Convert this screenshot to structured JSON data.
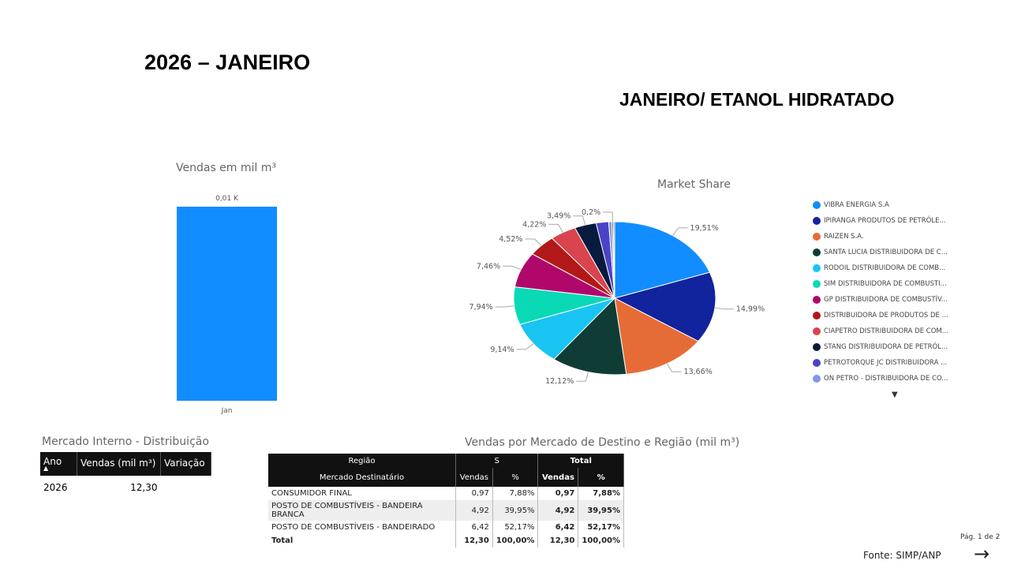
{
  "header": {
    "title": "2026 – JANEIRO",
    "subtitle": "JANEIRO/ ETANOL HIDRATADO"
  },
  "chart_data": [
    {
      "type": "bar",
      "title": "Vendas  em mil m³",
      "categories": [
        "Jan"
      ],
      "values": [
        0.01
      ],
      "data_labels": [
        "0,01 K"
      ],
      "color": "#118DFF",
      "grid": false
    },
    {
      "type": "pie",
      "title": "Market Share",
      "legend_position": "right",
      "slices": [
        {
          "name": "VIBRA ENERGIA S.A",
          "value": 19.51,
          "label": "19,51%",
          "color": "#118DFF"
        },
        {
          "name": "IPIRANGA PRODUTOS DE PETRÓLE...",
          "value": 14.99,
          "label": "14,99%",
          "color": "#12239E"
        },
        {
          "name": "RAIZEN S.A.",
          "value": 13.66,
          "label": "13,66%",
          "color": "#E66C37"
        },
        {
          "name": "SANTA LUCIA DISTRIBUIDORA DE C...",
          "value": 12.12,
          "label": "12,12%",
          "color": "#0F3D35"
        },
        {
          "name": "RODOIL DISTRIBUIDORA DE COMB...",
          "value": 9.14,
          "label": "9,14%",
          "color": "#1AC4F2"
        },
        {
          "name": "SIM DISTRIBUIDORA DE COMBUSTI...",
          "value": 7.94,
          "label": "7,94%",
          "color": "#0AD9B5"
        },
        {
          "name": "GP DISTRIBUIDORA DE COMBUSTÍV...",
          "value": 7.46,
          "label": "7,46%",
          "color": "#B0076B"
        },
        {
          "name": "DISTRIBUIDORA DE PRODUTOS DE ...",
          "value": 4.52,
          "label": "4,52%",
          "color": "#B31818"
        },
        {
          "name": "CIAPETRO DISTRIBUIDORA DE COM...",
          "value": 4.22,
          "label": "4,22%",
          "color": "#D9444E"
        },
        {
          "name": "STANG DISTRIBUIDORA DE PETRÓL...",
          "value": 3.49,
          "label": "3,49%",
          "color": "#071B3F"
        },
        {
          "name": "PETROTORQUE JC DISTRIBUIDORA ...",
          "value": 2.0,
          "label": "",
          "color": "#4B43C7"
        },
        {
          "name": "ON PETRO - DISTRIBUIDORA DE CO...",
          "value": 0.5,
          "label": "",
          "color": "#7F98E5"
        },
        {
          "name": "",
          "value": 0.25,
          "label": "0,2%",
          "color": "#8A5A3C"
        },
        {
          "name": "",
          "value": 0.2,
          "label": "",
          "color": "#2E8B57"
        }
      ]
    }
  ],
  "mercado_interno": {
    "title": "Mercado Interno - Distribuição",
    "columns": [
      "Ano",
      "Vendas (mil m³)",
      "Variação"
    ],
    "rows": [
      [
        "2026",
        "12,30",
        ""
      ]
    ]
  },
  "vendas_destino": {
    "title": "Vendas por Mercado de Destino e Região (mil m³)",
    "header_row1": [
      "Região",
      "S",
      "Total"
    ],
    "header_row2": [
      "Mercado Destinatário",
      "Vendas",
      "%",
      "Vendas",
      "%"
    ],
    "rows": [
      [
        "CONSUMIDOR FINAL",
        "0,97",
        "7,88%",
        "0,97",
        "7,88%"
      ],
      [
        "POSTO DE COMBUSTÍVEIS - BANDEIRA BRANCA",
        "4,92",
        "39,95%",
        "4,92",
        "39,95%"
      ],
      [
        "POSTO DE COMBUSTÍVEIS - BANDEIRADO",
        "6,42",
        "52,17%",
        "6,42",
        "52,17%"
      ],
      [
        "Total",
        "12,30",
        "100,00%",
        "12,30",
        "100,00%"
      ]
    ]
  },
  "footer": {
    "page": "Pág. 1 de 2",
    "source": "Fonte: SIMP/ANP",
    "next_arrow": "→"
  },
  "icons": {
    "legend_more": "caret-down-icon",
    "next": "arrow-right-icon"
  }
}
